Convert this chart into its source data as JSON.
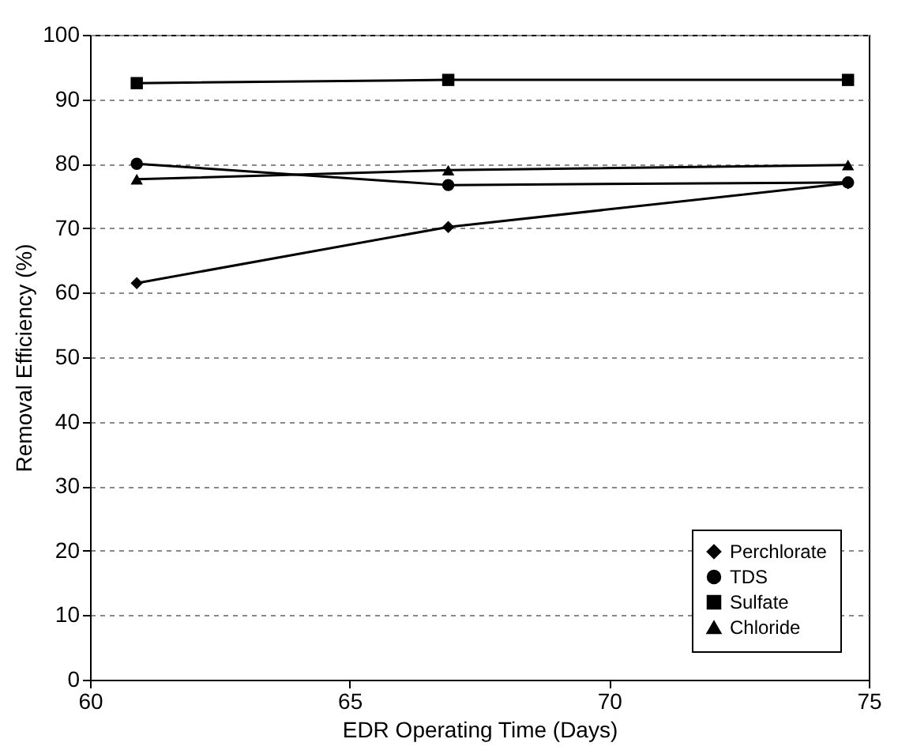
{
  "chart_data": {
    "type": "line",
    "xlabel": "EDR Operating Time (Days)",
    "ylabel": "Removal Efficiency (%)",
    "x": [
      60.9,
      66.9,
      74.6
    ],
    "series": [
      {
        "name": "Perchlorate",
        "color": "#000000",
        "marker": "diamond",
        "values": [
          61.5,
          70.2,
          77
        ]
      },
      {
        "name": "TDS",
        "color": "#000000",
        "marker": "circle",
        "values": [
          80,
          76.7,
          77.1
        ]
      },
      {
        "name": "Sulfate",
        "color": "#000000",
        "marker": "square",
        "values": [
          92.5,
          93,
          93
        ]
      },
      {
        "name": "Chloride",
        "color": "#000000",
        "marker": "triangle",
        "values": [
          77.6,
          79,
          79.8
        ]
      }
    ],
    "xlim": [
      60,
      75
    ],
    "xticks": [
      60,
      65,
      70,
      75
    ],
    "ylim": [
      0,
      100
    ],
    "yticks": [
      0,
      10,
      20,
      30,
      40,
      50,
      60,
      70,
      80,
      90,
      100
    ],
    "grid": "y",
    "legend": "bottom right",
    "line_style": "solid"
  }
}
